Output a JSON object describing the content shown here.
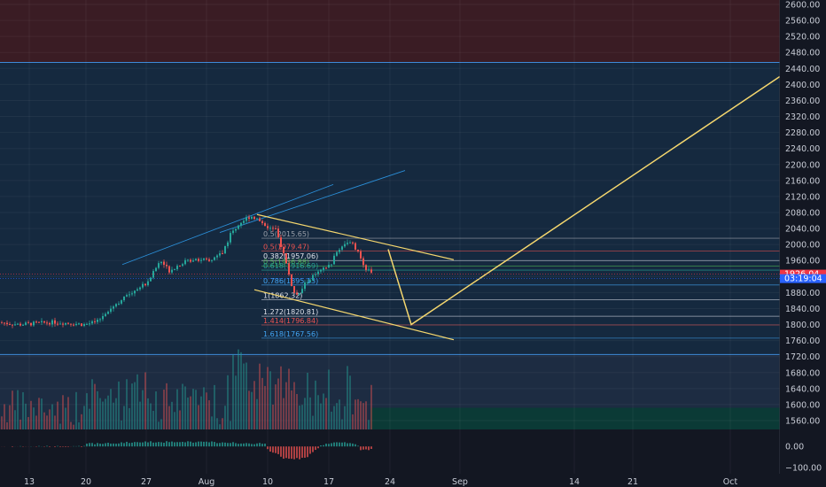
{
  "chart_data": {
    "type": "candlestick",
    "colors": {
      "background": "#131722",
      "upper_zone": "#3a1c24",
      "main_zone": "#15293f",
      "volume_zone": "#1d2c42",
      "green_zone": "#0b3a36",
      "up": "#26a69a",
      "down": "#ef5350",
      "drawing": "#f5d76e",
      "channel": "#2b8fd9",
      "fib_line": "#8d939f",
      "price_tag_red": "#f23645",
      "price_tag_blue": "#2962ff"
    },
    "x_axis": {
      "ticks": [
        "13",
        "20",
        "27",
        "Aug",
        "10",
        "17",
        "24",
        "Sep",
        "14",
        "21",
        "Oct"
      ]
    },
    "price_axis": {
      "min": 1530,
      "max": 2620,
      "ticks": [
        "2600.00",
        "2560.00",
        "2520.00",
        "2480.00",
        "2440.00",
        "2400.00",
        "2360.00",
        "2320.00",
        "2280.00",
        "2240.00",
        "2200.00",
        "2160.00",
        "2120.00",
        "2080.00",
        "2040.00",
        "2000.00",
        "1960.00",
        "1920.00",
        "1880.00",
        "1840.00",
        "1800.00",
        "1760.00",
        "1720.00",
        "1680.00",
        "1640.00",
        "1600.00",
        "1560.00"
      ]
    },
    "oscillator_axis": {
      "min": -130,
      "max": 60,
      "ticks": [
        "0.00",
        "−100.00"
      ]
    },
    "price_tags": [
      {
        "label": "1926.04",
        "value": 1926.04,
        "color": "#f23645"
      },
      {
        "label": "03:19:04",
        "value": 1917,
        "color": "#2962ff"
      }
    ],
    "fib_levels": [
      {
        "label": "0.5(2015.65)",
        "value": 2015.65,
        "color": "#9aa0aa"
      },
      {
        "label": "0.5(1979.47)",
        "value": 1984,
        "color": "#ef5350"
      },
      {
        "label": "0.382(1957.06)",
        "value": 1960,
        "color": "#e0e3eb"
      },
      {
        "label": "0.5(1936.88)",
        "value": 1946,
        "color": "#4caf50"
      },
      {
        "label": "0.618(1916.69)",
        "value": 1936,
        "color": "#26a69a"
      },
      {
        "label": "0.786(1895.13)",
        "value": 1899,
        "color": "#42a5f5"
      },
      {
        "label": "1(1862.32)",
        "value": 1862,
        "color": "#e0e3eb"
      },
      {
        "label": "1.272(1820.81)",
        "value": 1820.81,
        "color": "#e0e3eb"
      },
      {
        "label": "1.414(1796.84)",
        "value": 1799,
        "color": "#ef5350"
      },
      {
        "label": "1.618(1767.56)",
        "value": 1766,
        "color": "#42a5f5"
      }
    ],
    "zones": {
      "upper_boundary": 2455,
      "lower_boundary": 1725
    },
    "candles_summary": {
      "start_price": 1800,
      "peak_price": 2075,
      "low_after_peak": 1865,
      "swing_high": 2010,
      "last_price": 1926.04
    },
    "projection_path": [
      {
        "x_week": "17",
        "value": 1988
      },
      {
        "x_week": "24",
        "value": 1800
      },
      {
        "x_week": "Oct",
        "value": 2420
      }
    ]
  }
}
